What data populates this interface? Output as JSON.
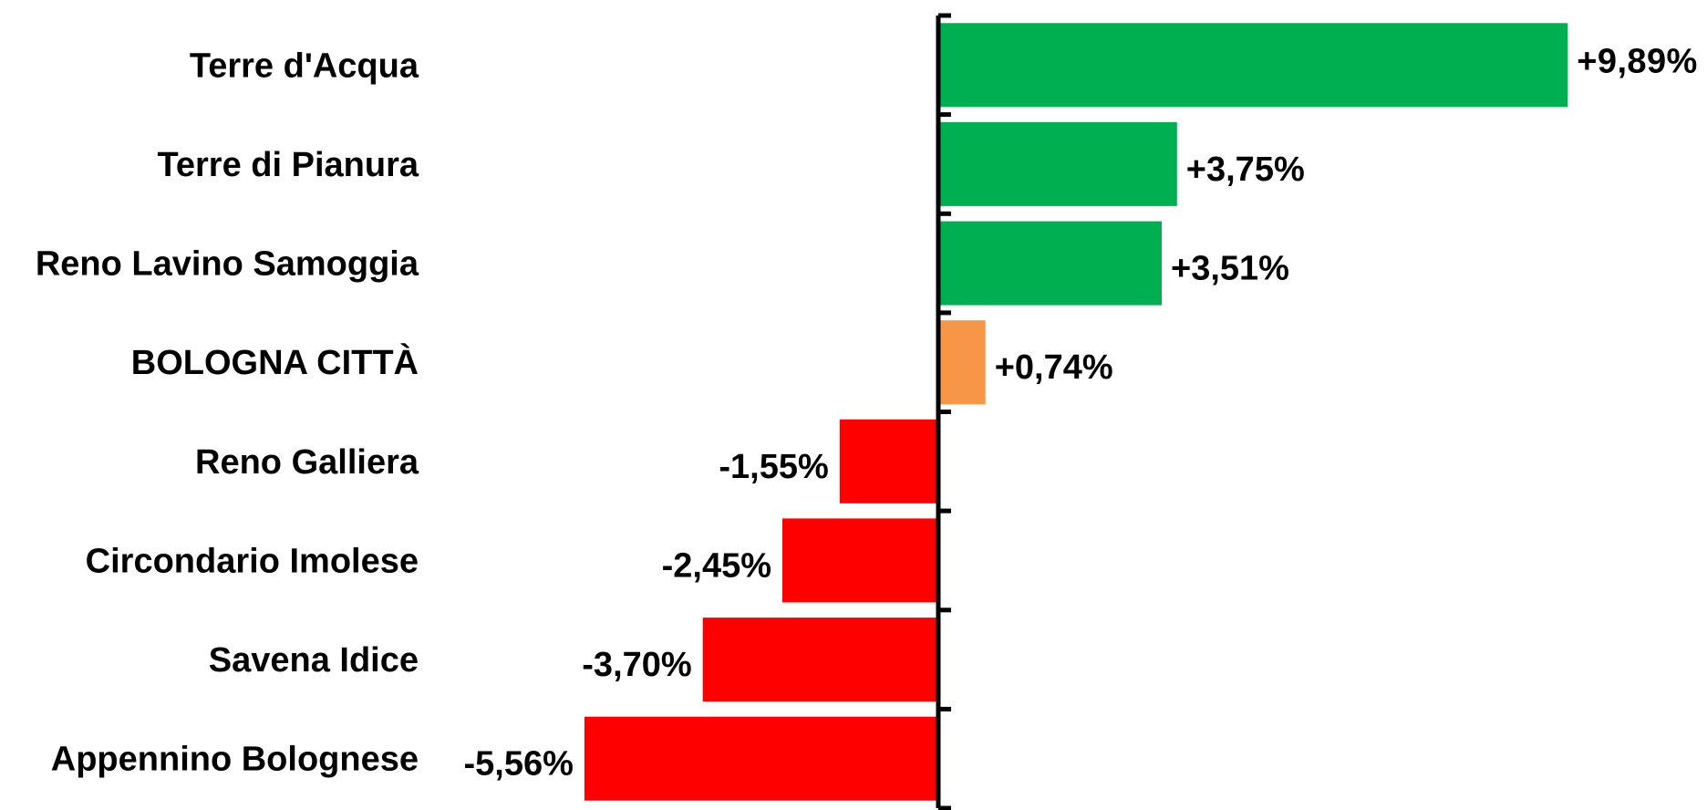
{
  "chart_data": {
    "type": "bar",
    "orientation": "horizontal",
    "categories": [
      "Terre d'Acqua",
      "Terre di Pianura",
      "Reno Lavino Samoggia",
      "BOLOGNA CITTÀ",
      "Reno Galliera",
      "Circondario Imolese",
      "Savena Idice",
      "Appennino Bolognese"
    ],
    "values": [
      9.89,
      3.75,
      3.51,
      0.74,
      -1.55,
      -2.45,
      -3.7,
      -5.56
    ],
    "value_labels": [
      "+9,89%",
      "+3,75%",
      "+3,51%",
      "+0,74%",
      "-1,55%",
      "-2,45%",
      "-3,70%",
      "-5,56%"
    ],
    "colors": [
      "#00b050",
      "#00b050",
      "#00b050",
      "#f79646",
      "#ff0000",
      "#ff0000",
      "#ff0000",
      "#ff0000"
    ],
    "xlim": [
      -5.56,
      9.89
    ],
    "grid": false,
    "legend": "none",
    "title": "",
    "xlabel": "",
    "ylabel": ""
  }
}
